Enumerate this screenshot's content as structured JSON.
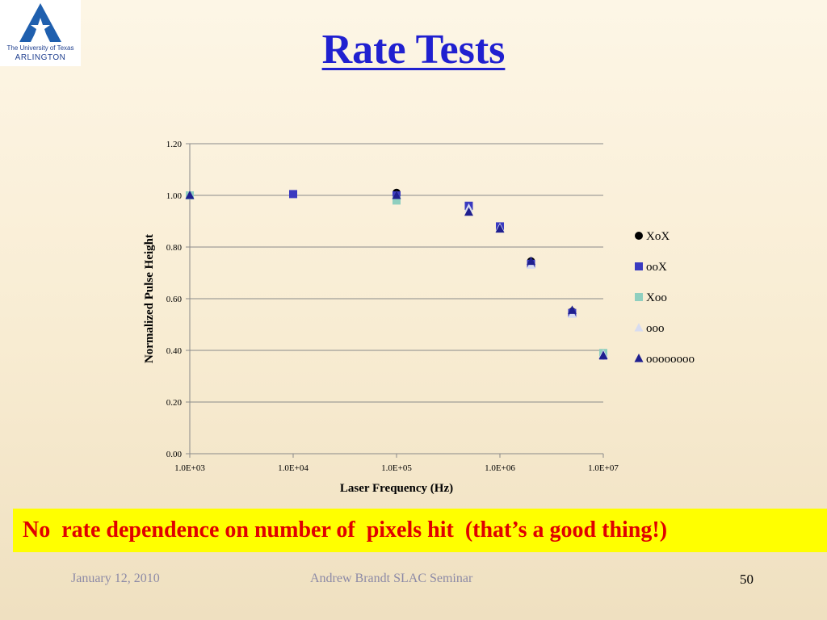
{
  "logo": {
    "line1": "The University of Texas",
    "line2": "ARLINGTON"
  },
  "slide": {
    "title": "Rate Tests",
    "callout": "No  rate dependence on number of  pixels hit  (that’s a good thing!)",
    "footer_date": "January 12, 2010",
    "footer_center": "Andrew Brandt  SLAC  Seminar",
    "page_number": "50"
  },
  "colors": {
    "title": "#2020d0",
    "callout_bg": "#ffff00",
    "callout_text": "#e00000"
  },
  "chart_data": {
    "type": "scatter",
    "title": "",
    "xlabel": "Laser Frequency (Hz)",
    "ylabel": "Normalized Pulse Height",
    "xscale": "log",
    "xlim": [
      1000,
      10000000
    ],
    "ylim": [
      0,
      1.2
    ],
    "xticks": [
      1000,
      10000,
      100000,
      1000000,
      10000000
    ],
    "xtick_labels": [
      "1.0E+03",
      "1.0E+04",
      "1.0E+05",
      "1.0E+06",
      "1.0E+07"
    ],
    "yticks": [
      0,
      0.2,
      0.4,
      0.6,
      0.8,
      1.0,
      1.2
    ],
    "ytick_labels": [
      "0.00",
      "0.20",
      "0.40",
      "0.60",
      "0.80",
      "1.00",
      "1.20"
    ],
    "grid": "horizontal",
    "legend": "right",
    "series": [
      {
        "name": "XoX",
        "marker": "circle",
        "color": "#000000",
        "points": [
          [
            100000,
            1.01
          ],
          [
            500000,
            0.95
          ],
          [
            2000000,
            0.745
          ],
          [
            5000000,
            0.55
          ],
          [
            10000000,
            0.38
          ]
        ]
      },
      {
        "name": "ooX",
        "marker": "square",
        "color": "#3a3ac0",
        "points": [
          [
            10000,
            1.005
          ],
          [
            100000,
            1.0
          ],
          [
            500000,
            0.96
          ],
          [
            1000000,
            0.88
          ],
          [
            2000000,
            0.735
          ],
          [
            5000000,
            0.545
          ],
          [
            10000000,
            0.38
          ]
        ]
      },
      {
        "name": "Xoo",
        "marker": "square",
        "color": "#8fcfbf",
        "points": [
          [
            1000,
            1.0
          ],
          [
            100000,
            0.98
          ],
          [
            10000000,
            0.39
          ]
        ]
      },
      {
        "name": "ooo",
        "marker": "triangle",
        "color": "#d8dcf0",
        "points": [
          [
            1000,
            1.0
          ],
          [
            100000,
            1.0
          ],
          [
            500000,
            0.95
          ],
          [
            1000000,
            0.875
          ],
          [
            2000000,
            0.73
          ],
          [
            5000000,
            0.54
          ],
          [
            10000000,
            0.385
          ]
        ]
      },
      {
        "name": "oooooooo",
        "marker": "triangle",
        "color": "#1f1f8f",
        "points": [
          [
            1000,
            1.0
          ],
          [
            100000,
            1.0
          ],
          [
            500000,
            0.935
          ],
          [
            1000000,
            0.87
          ],
          [
            2000000,
            0.745
          ],
          [
            5000000,
            0.555
          ],
          [
            10000000,
            0.38
          ]
        ]
      }
    ]
  }
}
